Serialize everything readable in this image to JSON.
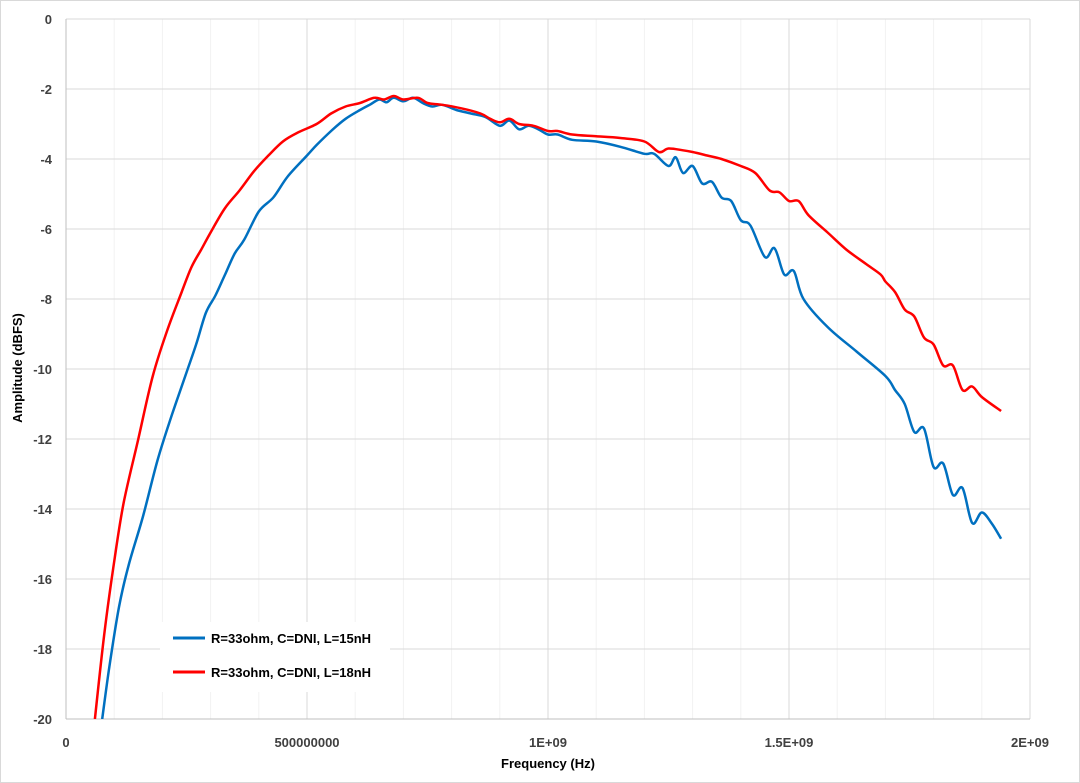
{
  "chart_data": {
    "type": "line",
    "xlabel": "Frequency (Hz)",
    "ylabel": "Amplitude (dBFS)",
    "xlim": [
      0,
      2000000000
    ],
    "ylim": [
      -20,
      0
    ],
    "x_ticks": [
      0,
      500000000,
      1000000000,
      1500000000,
      2000000000
    ],
    "x_tick_labels": [
      "0",
      "500000000",
      "1E+09",
      "1.5E+09",
      "2E+09"
    ],
    "x_minor_step": 100000000,
    "y_ticks": [
      0,
      -2,
      -4,
      -6,
      -8,
      -10,
      -12,
      -14,
      -16,
      -18,
      -20
    ],
    "y_tick_labels": [
      "0",
      "-2",
      "-4",
      "-6",
      "-8",
      "-10",
      "-12",
      "-14",
      "-16",
      "-18",
      "-20"
    ],
    "grid": true,
    "legend_position": "bottom-left",
    "series": [
      {
        "name": "R=33ohm, C=DNI, L=15nH",
        "color": "#0070c0",
        "points": [
          [
            75000000,
            -20
          ],
          [
            90000000,
            -18.5
          ],
          [
            110000000,
            -16.8
          ],
          [
            130000000,
            -15.6
          ],
          [
            160000000,
            -14.2
          ],
          [
            190000000,
            -12.6
          ],
          [
            220000000,
            -11.3
          ],
          [
            250000000,
            -10.1
          ],
          [
            270000000,
            -9.3
          ],
          [
            290000000,
            -8.4
          ],
          [
            310000000,
            -7.9
          ],
          [
            330000000,
            -7.3
          ],
          [
            350000000,
            -6.7
          ],
          [
            370000000,
            -6.3
          ],
          [
            400000000,
            -5.5
          ],
          [
            430000000,
            -5.1
          ],
          [
            460000000,
            -4.5
          ],
          [
            500000000,
            -3.9
          ],
          [
            520000000,
            -3.6
          ],
          [
            550000000,
            -3.2
          ],
          [
            580000000,
            -2.85
          ],
          [
            610000000,
            -2.6
          ],
          [
            630000000,
            -2.45
          ],
          [
            650000000,
            -2.3
          ],
          [
            665000000,
            -2.38
          ],
          [
            680000000,
            -2.25
          ],
          [
            700000000,
            -2.35
          ],
          [
            720000000,
            -2.25
          ],
          [
            740000000,
            -2.4
          ],
          [
            760000000,
            -2.5
          ],
          [
            780000000,
            -2.45
          ],
          [
            810000000,
            -2.6
          ],
          [
            840000000,
            -2.7
          ],
          [
            870000000,
            -2.8
          ],
          [
            900000000,
            -3.05
          ],
          [
            920000000,
            -2.9
          ],
          [
            940000000,
            -3.15
          ],
          [
            960000000,
            -3.05
          ],
          [
            980000000,
            -3.15
          ],
          [
            1000000000,
            -3.3
          ],
          [
            1020000000,
            -3.3
          ],
          [
            1050000000,
            -3.45
          ],
          [
            1100000000,
            -3.5
          ],
          [
            1150000000,
            -3.65
          ],
          [
            1200000000,
            -3.85
          ],
          [
            1220000000,
            -3.85
          ],
          [
            1250000000,
            -4.2
          ],
          [
            1265000000,
            -3.95
          ],
          [
            1280000000,
            -4.4
          ],
          [
            1300000000,
            -4.2
          ],
          [
            1320000000,
            -4.7
          ],
          [
            1340000000,
            -4.65
          ],
          [
            1360000000,
            -5.1
          ],
          [
            1380000000,
            -5.2
          ],
          [
            1400000000,
            -5.75
          ],
          [
            1420000000,
            -5.9
          ],
          [
            1450000000,
            -6.8
          ],
          [
            1470000000,
            -6.55
          ],
          [
            1490000000,
            -7.3
          ],
          [
            1510000000,
            -7.2
          ],
          [
            1530000000,
            -8.0
          ],
          [
            1580000000,
            -8.8
          ],
          [
            1640000000,
            -9.5
          ],
          [
            1700000000,
            -10.2
          ],
          [
            1720000000,
            -10.6
          ],
          [
            1740000000,
            -11.0
          ],
          [
            1760000000,
            -11.8
          ],
          [
            1780000000,
            -11.7
          ],
          [
            1800000000,
            -12.8
          ],
          [
            1820000000,
            -12.7
          ],
          [
            1840000000,
            -13.6
          ],
          [
            1860000000,
            -13.4
          ],
          [
            1880000000,
            -14.4
          ],
          [
            1900000000,
            -14.1
          ],
          [
            1920000000,
            -14.4
          ],
          [
            1940000000,
            -14.85
          ]
        ]
      },
      {
        "name": "R=33ohm, C=DNI, L=18nH",
        "color": "#ff0000",
        "points": [
          [
            60000000,
            -20
          ],
          [
            80000000,
            -17.5
          ],
          [
            100000000,
            -15.5
          ],
          [
            120000000,
            -13.8
          ],
          [
            150000000,
            -12.0
          ],
          [
            180000000,
            -10.2
          ],
          [
            210000000,
            -8.9
          ],
          [
            240000000,
            -7.8
          ],
          [
            260000000,
            -7.1
          ],
          [
            280000000,
            -6.6
          ],
          [
            300000000,
            -6.1
          ],
          [
            330000000,
            -5.4
          ],
          [
            360000000,
            -4.9
          ],
          [
            390000000,
            -4.35
          ],
          [
            420000000,
            -3.9
          ],
          [
            450000000,
            -3.5
          ],
          [
            480000000,
            -3.25
          ],
          [
            520000000,
            -3.0
          ],
          [
            550000000,
            -2.7
          ],
          [
            580000000,
            -2.5
          ],
          [
            610000000,
            -2.4
          ],
          [
            640000000,
            -2.25
          ],
          [
            660000000,
            -2.3
          ],
          [
            680000000,
            -2.2
          ],
          [
            700000000,
            -2.3
          ],
          [
            730000000,
            -2.25
          ],
          [
            750000000,
            -2.4
          ],
          [
            780000000,
            -2.45
          ],
          [
            820000000,
            -2.55
          ],
          [
            860000000,
            -2.7
          ],
          [
            880000000,
            -2.85
          ],
          [
            900000000,
            -2.95
          ],
          [
            920000000,
            -2.85
          ],
          [
            940000000,
            -3.0
          ],
          [
            970000000,
            -3.05
          ],
          [
            1000000000,
            -3.2
          ],
          [
            1020000000,
            -3.2
          ],
          [
            1050000000,
            -3.3
          ],
          [
            1100000000,
            -3.35
          ],
          [
            1150000000,
            -3.4
          ],
          [
            1200000000,
            -3.5
          ],
          [
            1230000000,
            -3.8
          ],
          [
            1250000000,
            -3.7
          ],
          [
            1280000000,
            -3.75
          ],
          [
            1300000000,
            -3.8
          ],
          [
            1330000000,
            -3.9
          ],
          [
            1360000000,
            -4.0
          ],
          [
            1400000000,
            -4.2
          ],
          [
            1430000000,
            -4.4
          ],
          [
            1460000000,
            -4.9
          ],
          [
            1480000000,
            -4.95
          ],
          [
            1500000000,
            -5.2
          ],
          [
            1520000000,
            -5.2
          ],
          [
            1540000000,
            -5.6
          ],
          [
            1580000000,
            -6.1
          ],
          [
            1620000000,
            -6.6
          ],
          [
            1660000000,
            -7.0
          ],
          [
            1690000000,
            -7.3
          ],
          [
            1700000000,
            -7.5
          ],
          [
            1720000000,
            -7.8
          ],
          [
            1740000000,
            -8.3
          ],
          [
            1760000000,
            -8.5
          ],
          [
            1780000000,
            -9.1
          ],
          [
            1800000000,
            -9.3
          ],
          [
            1820000000,
            -9.9
          ],
          [
            1840000000,
            -9.9
          ],
          [
            1860000000,
            -10.6
          ],
          [
            1880000000,
            -10.5
          ],
          [
            1900000000,
            -10.8
          ],
          [
            1940000000,
            -11.2
          ]
        ]
      }
    ]
  }
}
